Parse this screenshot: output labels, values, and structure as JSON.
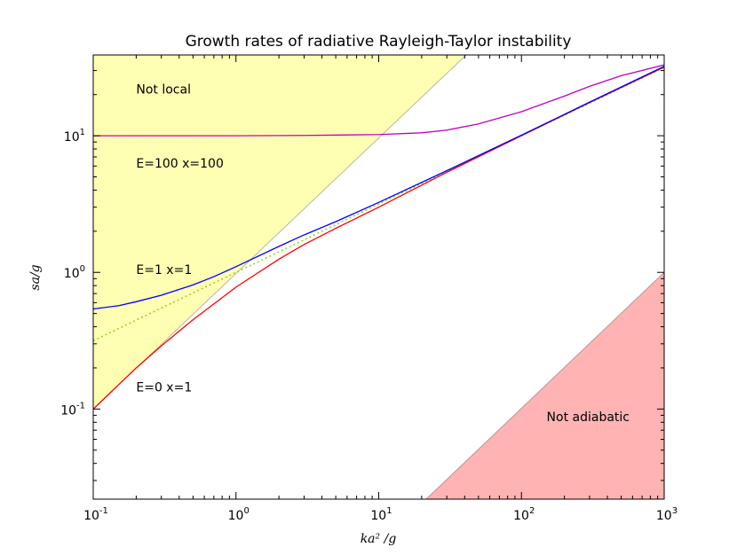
{
  "chart_data": {
    "type": "line",
    "title": "Growth rates of radiative Rayleigh-Taylor instability",
    "xlabel": "ka² /g",
    "ylabel": "sa/g",
    "xscale": "log",
    "yscale": "log",
    "xlim": [
      0.1,
      1000
    ],
    "ylim": [
      0.0219,
      39
    ],
    "grid": false,
    "x_ticks": [
      {
        "base": "10",
        "exp": "-1",
        "value": 0.1
      },
      {
        "base": "10",
        "exp": "0",
        "value": 1
      },
      {
        "base": "10",
        "exp": "1",
        "value": 10
      },
      {
        "base": "10",
        "exp": "2",
        "value": 100
      },
      {
        "base": "10",
        "exp": "3",
        "value": 1000
      }
    ],
    "y_ticks": [
      {
        "base": "10",
        "exp": "-1",
        "value": 0.1
      },
      {
        "base": "10",
        "exp": "0",
        "value": 1
      },
      {
        "base": "10",
        "exp": "1",
        "value": 10
      }
    ],
    "regions": [
      {
        "label": "Not local",
        "color": "#ffffb3",
        "edge": "#b8b8a0",
        "boundary": [
          [
            0.1,
            0.1
          ],
          [
            41,
            39
          ]
        ],
        "side": "upper-left"
      },
      {
        "label": "Not adiabatic",
        "color": "#ffb3b3",
        "edge": "#b89898",
        "boundary": [
          [
            21.5,
            0.0219
          ],
          [
            1000,
            1.0
          ]
        ],
        "side": "lower-right"
      }
    ],
    "series": [
      {
        "color": "#bf00bf",
        "x": [
          0.1,
          0.3,
          1,
          3,
          10,
          20,
          30,
          50,
          100,
          200,
          300,
          500,
          1000
        ],
        "y": [
          10,
          10,
          10,
          10.05,
          10.2,
          10.5,
          11.0,
          12.2,
          15,
          19.5,
          23,
          27.5,
          33
        ]
      },
      {
        "color": "#0000ff",
        "x": [
          0.1,
          0.15,
          0.2,
          0.3,
          0.5,
          0.7,
          1,
          2,
          3,
          5,
          10,
          30,
          100,
          300,
          1000
        ],
        "y": [
          0.54,
          0.57,
          0.61,
          0.68,
          0.81,
          0.93,
          1.1,
          1.55,
          1.88,
          2.35,
          3.25,
          5.55,
          10.1,
          17.6,
          32.2
        ]
      },
      {
        "color": "#ff0000",
        "x": [
          0.1,
          0.2,
          0.3,
          0.5,
          1,
          2,
          3,
          5,
          10,
          30,
          100,
          300,
          1000
        ],
        "y": [
          0.1,
          0.2,
          0.29,
          0.45,
          0.78,
          1.25,
          1.6,
          2.1,
          3.0,
          5.4,
          10.0,
          17.5,
          31.8
        ]
      },
      {
        "color": "#9acd32",
        "dash": "2,3",
        "x": [
          0.1,
          0.3,
          1,
          3,
          10,
          30,
          100,
          300,
          1000
        ],
        "y": [
          0.316,
          0.548,
          1.0,
          1.73,
          3.16,
          5.48,
          10.0,
          17.3,
          31.6
        ]
      }
    ],
    "annotations": [
      {
        "text": "Not local",
        "x": 0.2,
        "y": 22
      },
      {
        "text": "E=100 x=100",
        "x": 0.2,
        "y": 6.3
      },
      {
        "text": "E=1 x=1",
        "x": 0.2,
        "y": 1.05
      },
      {
        "text": "E=0 x=1",
        "x": 0.2,
        "y": 0.145
      },
      {
        "text": "Not adiabatic",
        "x": 150,
        "y": 0.088
      }
    ]
  }
}
